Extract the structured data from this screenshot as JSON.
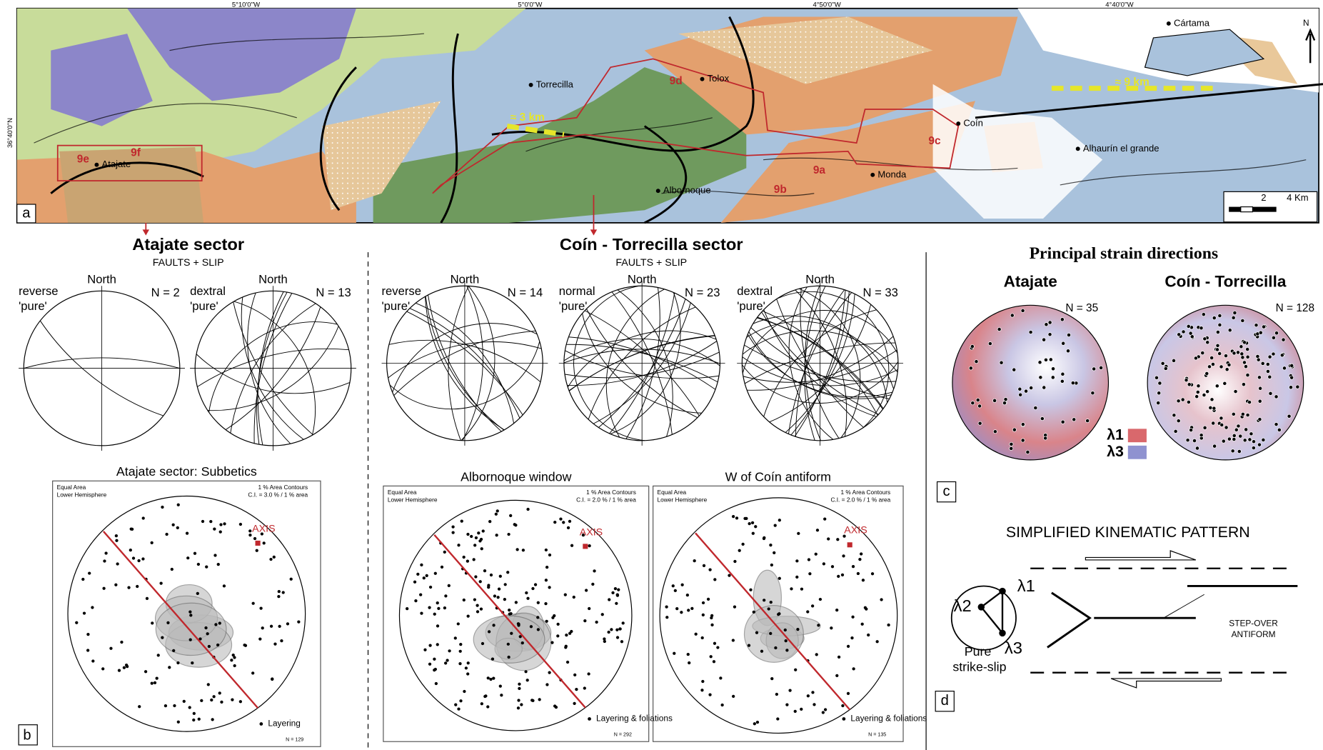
{
  "map": {
    "panel": "a",
    "lon_labels": [
      "5°10'0''W",
      "5°0'0''W",
      "4°50'0''W",
      "4°40'0''W"
    ],
    "lat_label": "36°40'0''N",
    "north": "N",
    "places": [
      "Cártama",
      "Torrecilla",
      "Tolox",
      "Coín",
      "Alhaurín el grande",
      "Monda",
      "Albornoque",
      "Atajate"
    ],
    "boxes": [
      "9a",
      "9b",
      "9c",
      "9d",
      "9e",
      "9f"
    ],
    "offsets": [
      "≈ 3 km",
      "≈ 9 km"
    ],
    "scale": [
      "2",
      "4 Km"
    ]
  },
  "faults": {
    "panel": "b",
    "sectors": [
      {
        "title": "Atajate sector",
        "subtitle": "FAULTS + SLIP",
        "nets": [
          {
            "label": [
              "reverse",
              "'pure'"
            ],
            "north": "North",
            "n": "N = 2"
          },
          {
            "label": [
              "dextral",
              "'pure'"
            ],
            "north": "North",
            "n": "N = 13"
          }
        ]
      },
      {
        "title": "Coín - Torrecilla sector",
        "subtitle": "FAULTS + SLIP",
        "nets": [
          {
            "label": [
              "reverse",
              "'pure'"
            ],
            "north": "North",
            "n": "N = 14"
          },
          {
            "label": [
              "normal",
              "'pure'"
            ],
            "north": "North",
            "n": "N = 23"
          },
          {
            "label": [
              "dextral",
              "'pure'"
            ],
            "north": "North",
            "n": "N = 33"
          }
        ]
      }
    ]
  },
  "foliation": [
    {
      "title": "Atajate sector: Subbetics",
      "proj": [
        "Equal Area",
        "Lower Hemisphere"
      ],
      "contours": [
        "1 % Area Contours",
        "C.I. = 3.0 % / 1 % area"
      ],
      "axis": "AXIS",
      "legend": "Layering",
      "n": "N = 129"
    },
    {
      "title": "Albornoque window",
      "proj": [
        "Equal Area",
        "Lower Hemisphere"
      ],
      "contours": [
        "1 % Area Contours",
        "C.I. = 2.0 % / 1 % area"
      ],
      "axis": "AXIS",
      "legend": "Layering & foliations",
      "n": "N = 292"
    },
    {
      "title": "W of Coín antiform",
      "proj": [
        "Equal Area",
        "Lower Hemisphere"
      ],
      "contours": [
        "1 % Area Contours",
        "C.I. = 2.0 % / 1 % area"
      ],
      "axis": "AXIS",
      "legend": "Layering & foliations",
      "n": "N = 135"
    }
  ],
  "strain": {
    "panel": "c",
    "title": "Principal strain directions",
    "nets": [
      {
        "title": "Atajate",
        "n": "N = 35"
      },
      {
        "title": "Coín - Torrecilla",
        "n": "N = 128"
      }
    ],
    "legend": [
      "λ1",
      "λ3"
    ]
  },
  "kinematic": {
    "panel": "d",
    "title": "SIMPLIFIED KINEMATIC PATTERN",
    "axes": [
      "λ1",
      "λ2",
      "λ3"
    ],
    "caption": [
      "Pure",
      "strike-slip"
    ],
    "stepover": [
      "STEP-OVER",
      "ANTIFORM"
    ]
  }
}
